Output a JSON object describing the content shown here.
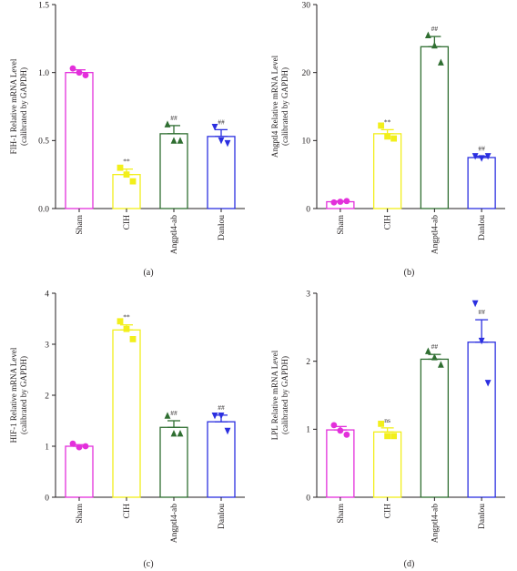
{
  "colors": {
    "Sham": "#e32fdb",
    "CIH": "#f2ef1b",
    "Angptl4-ab": "#2f6e31",
    "Danlou": "#2b2fe0",
    "axis": "#231f20"
  },
  "chart_data": [
    {
      "panel": "(a)",
      "type": "bar",
      "ylabel": [
        "FIH-1 Relative mRNA Level",
        "(calibrated by GAPDH)"
      ],
      "ylim": [
        0,
        1.5
      ],
      "yticks": [
        "0.0",
        "0.5",
        "1.0",
        "1.5"
      ],
      "yticks_values": [
        0,
        0.5,
        1.0,
        1.5
      ],
      "categories": [
        "Sham",
        "CIH",
        "Angptl4-ab",
        "Danlou"
      ],
      "values": [
        1.0,
        0.25,
        0.55,
        0.53
      ],
      "errors": [
        0.02,
        0.04,
        0.06,
        0.05
      ],
      "points": [
        [
          1.03,
          1.0,
          0.98
        ],
        [
          0.3,
          0.25,
          0.2
        ],
        [
          0.62,
          0.5,
          0.5
        ],
        [
          0.6,
          0.5,
          0.48
        ]
      ],
      "significance": [
        "",
        "**",
        "##",
        "##"
      ]
    },
    {
      "panel": "(b)",
      "type": "bar",
      "ylabel": [
        "Angptl4 Relative mRNA Level",
        "(calibrated by GAPDH)"
      ],
      "ylim": [
        0,
        30
      ],
      "yticks": [
        "0",
        "10",
        "20",
        "30"
      ],
      "yticks_values": [
        0,
        10,
        20,
        30
      ],
      "categories": [
        "Sham",
        "CIH",
        "Angptl4-ab",
        "Danlou"
      ],
      "values": [
        1.0,
        11.0,
        23.8,
        7.5
      ],
      "errors": [
        0.1,
        0.6,
        1.5,
        0.2
      ],
      "points": [
        [
          0.9,
          1.0,
          1.1
        ],
        [
          12.2,
          10.6,
          10.3
        ],
        [
          25.5,
          24.0,
          21.5
        ],
        [
          7.7,
          7.4,
          7.7
        ]
      ],
      "significance": [
        "",
        "**",
        "##",
        "##"
      ]
    },
    {
      "panel": "(c)",
      "type": "bar",
      "ylabel": [
        "HIF-1 Relative mRNA Level",
        "(calibrated by GAPDH)"
      ],
      "ylim": [
        0,
        4
      ],
      "yticks": [
        "0",
        "1",
        "2",
        "3",
        "4"
      ],
      "yticks_values": [
        0,
        1,
        2,
        3,
        4
      ],
      "categories": [
        "Sham",
        "CIH",
        "Angptl4-ab",
        "Danlou"
      ],
      "values": [
        1.0,
        3.28,
        1.37,
        1.48
      ],
      "errors": [
        0.03,
        0.1,
        0.13,
        0.13
      ],
      "points": [
        [
          1.05,
          0.98,
          1.0
        ],
        [
          3.45,
          3.3,
          3.1
        ],
        [
          1.6,
          1.25,
          1.25
        ],
        [
          1.6,
          1.6,
          1.3
        ]
      ],
      "significance": [
        "",
        "**",
        "##",
        "##"
      ]
    },
    {
      "panel": "(d)",
      "type": "bar",
      "ylabel": [
        "LPL Relative mRNA Level",
        "(calibrated by GAPDH)"
      ],
      "ylim": [
        0,
        3
      ],
      "yticks": [
        "0",
        "1",
        "2",
        "3"
      ],
      "yticks_values": [
        0,
        1,
        2,
        3
      ],
      "categories": [
        "Sham",
        "CIH",
        "Angptl4-ab",
        "Danlou"
      ],
      "values": [
        0.99,
        0.96,
        2.03,
        2.28
      ],
      "errors": [
        0.05,
        0.06,
        0.07,
        0.33
      ],
      "points": [
        [
          1.06,
          0.98,
          0.92
        ],
        [
          1.08,
          0.9,
          0.9
        ],
        [
          2.15,
          2.06,
          1.95
        ],
        [
          2.85,
          2.3,
          1.68
        ]
      ],
      "significance": [
        "",
        "ns",
        "##",
        "##"
      ]
    }
  ]
}
